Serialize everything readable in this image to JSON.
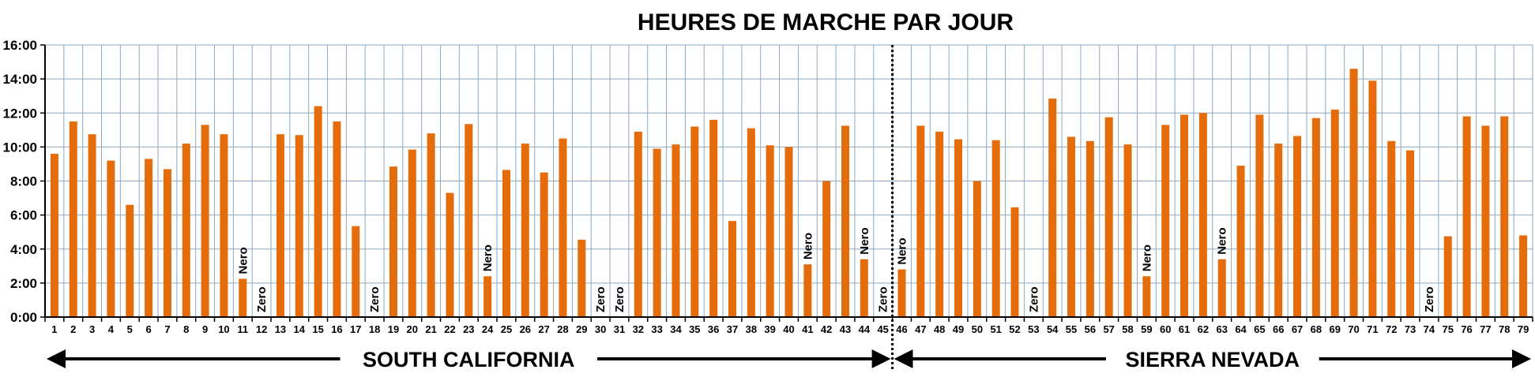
{
  "chart_data": {
    "type": "bar",
    "title": "HEURES DE MARCHE PAR JOUR",
    "xlabel": "",
    "ylabel": "",
    "y_unit": "hours (h:mm)",
    "ylim": [
      0,
      16
    ],
    "yticks": [
      "0:00",
      "2:00",
      "4:00",
      "6:00",
      "8:00",
      "10:00",
      "12:00",
      "14:00",
      "16:00"
    ],
    "grid": true,
    "bar_color": "#E46C0A",
    "categories": [
      "1",
      "2",
      "3",
      "4",
      "5",
      "6",
      "7",
      "8",
      "9",
      "10",
      "11",
      "12",
      "13",
      "14",
      "15",
      "16",
      "17",
      "18",
      "19",
      "20",
      "21",
      "22",
      "23",
      "24",
      "25",
      "26",
      "27",
      "28",
      "29",
      "30",
      "31",
      "32",
      "33",
      "34",
      "35",
      "36",
      "37",
      "38",
      "39",
      "40",
      "41",
      "42",
      "43",
      "44",
      "45",
      "46",
      "47",
      "48",
      "49",
      "50",
      "51",
      "52",
      "53",
      "54",
      "55",
      "56",
      "57",
      "58",
      "59",
      "60",
      "61",
      "62",
      "63",
      "64",
      "65",
      "66",
      "67",
      "68",
      "69",
      "70",
      "71",
      "72",
      "73",
      "74",
      "75",
      "76",
      "77",
      "78",
      "79"
    ],
    "values": [
      9.6,
      11.5,
      10.75,
      9.2,
      6.6,
      9.3,
      8.7,
      10.2,
      11.3,
      10.75,
      2.25,
      0,
      10.75,
      10.7,
      12.4,
      11.5,
      5.35,
      0,
      8.85,
      9.85,
      10.8,
      7.3,
      11.35,
      2.4,
      8.65,
      10.2,
      8.5,
      10.5,
      4.55,
      0,
      0,
      10.9,
      9.9,
      10.15,
      11.2,
      11.6,
      5.65,
      11.1,
      10.1,
      10.0,
      3.1,
      8.0,
      11.25,
      3.4,
      0,
      2.8,
      11.25,
      10.9,
      10.45,
      8.0,
      10.4,
      6.45,
      0,
      12.85,
      10.6,
      10.35,
      11.75,
      10.15,
      2.4,
      11.3,
      11.9,
      12.0,
      3.4,
      8.9,
      11.9,
      10.2,
      10.65,
      11.7,
      12.2,
      14.6,
      13.9,
      10.35,
      9.8,
      0,
      4.75,
      11.8,
      11.25,
      11.8,
      4.8
    ],
    "annotations": [
      {
        "day": "11",
        "text": "Nero"
      },
      {
        "day": "12",
        "text": "Zero"
      },
      {
        "day": "18",
        "text": "Zero"
      },
      {
        "day": "24",
        "text": "Nero"
      },
      {
        "day": "30",
        "text": "Zero"
      },
      {
        "day": "31",
        "text": "Zero"
      },
      {
        "day": "41",
        "text": "Nero"
      },
      {
        "day": "44",
        "text": "Nero"
      },
      {
        "day": "45",
        "text": "Zero"
      },
      {
        "day": "46",
        "text": "Nero"
      },
      {
        "day": "53",
        "text": "Zero"
      },
      {
        "day": "59",
        "text": "Nero"
      },
      {
        "day": "63",
        "text": "Nero"
      },
      {
        "day": "74",
        "text": "Zero"
      }
    ],
    "divider_after": "45",
    "regions": [
      {
        "name": "SOUTH CALIFORNIA",
        "from": "1",
        "to": "45"
      },
      {
        "name": "SIERRA NEVADA",
        "from": "46",
        "to": "79"
      }
    ]
  }
}
